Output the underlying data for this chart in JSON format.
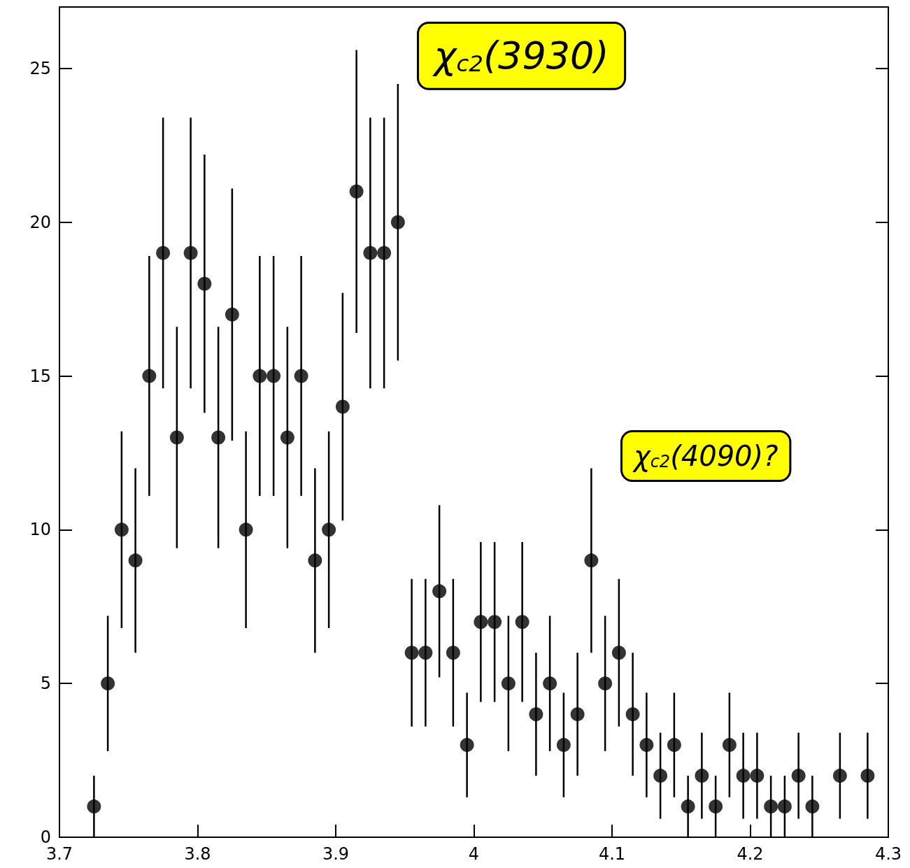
{
  "chart_data": {
    "type": "scatter",
    "annotations": [
      "χ$_{c2}$(3930)",
      "χ$_{c2}$(4090)?"
    ],
    "x": [
      3.725,
      3.735,
      3.745,
      3.755,
      3.765,
      3.775,
      3.785,
      3.795,
      3.805,
      3.815,
      3.825,
      3.835,
      3.845,
      3.855,
      3.865,
      3.875,
      3.885,
      3.895,
      3.905,
      3.915,
      3.925,
      3.935,
      3.945,
      3.955,
      3.965,
      3.975,
      3.985,
      3.995,
      4.005,
      4.015,
      4.025,
      4.035,
      4.045,
      4.055,
      4.065,
      4.075,
      4.085,
      4.095,
      4.105,
      4.115,
      4.125,
      4.135,
      4.145,
      4.155,
      4.165,
      4.175,
      4.185,
      4.195,
      4.205,
      4.215,
      4.225,
      4.235,
      4.245,
      4.265,
      4.285
    ],
    "values": [
      1,
      5,
      10,
      9,
      15,
      19,
      13,
      19,
      18,
      13,
      17,
      10,
      15,
      15,
      13,
      15,
      9,
      10,
      14,
      21,
      19,
      19,
      20,
      6,
      6,
      8,
      6,
      3,
      7,
      7,
      5,
      7,
      4,
      5,
      3,
      4,
      9,
      5,
      6,
      4,
      3,
      2,
      3,
      1,
      2,
      1,
      3,
      2,
      2,
      1,
      1,
      2,
      1,
      2,
      2
    ],
    "errors": [
      1,
      2.2,
      3.2,
      3,
      3.9,
      4.4,
      3.6,
      4.4,
      4.2,
      3.6,
      4.1,
      3.2,
      3.9,
      3.9,
      3.6,
      3.9,
      3,
      3.2,
      3.7,
      4.6,
      4.4,
      4.4,
      4.5,
      2.4,
      2.4,
      2.8,
      2.4,
      1.7,
      2.6,
      2.6,
      2.2,
      2.6,
      2,
      2.2,
      1.7,
      2,
      3,
      2.2,
      2.4,
      2,
      1.7,
      1.4,
      1.7,
      1,
      1.4,
      1,
      1.7,
      1.4,
      1.4,
      1,
      1,
      1.4,
      1,
      1.4,
      1.4
    ],
    "color": "#000000",
    "marker": "circle",
    "xlim": [
      3.7,
      4.3
    ],
    "xticks": [
      3.7,
      3.8,
      3.9,
      4,
      4.1,
      4.2,
      4.3
    ],
    "ylim": [
      0,
      27
    ],
    "yticks": [
      0,
      5,
      10,
      15,
      20,
      25
    ]
  }
}
